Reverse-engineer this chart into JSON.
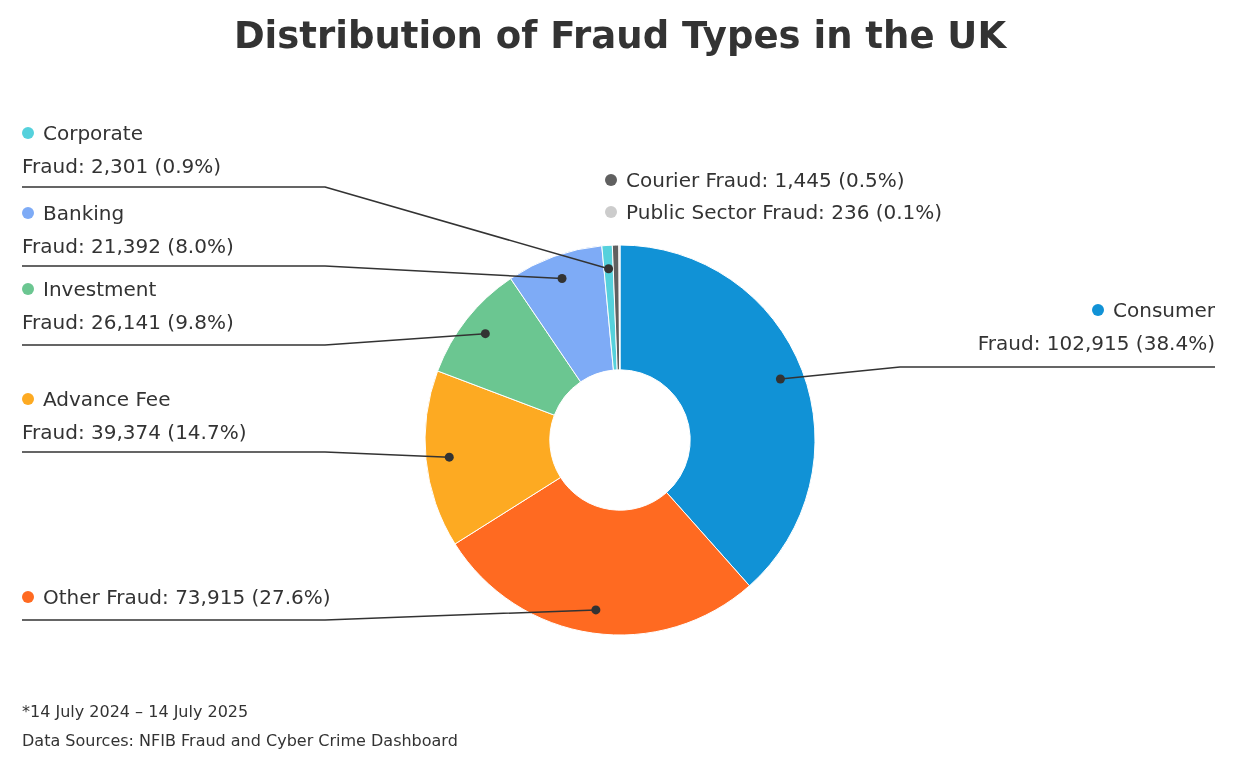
{
  "chart_data": {
    "type": "donut",
    "title": "Distribution of Fraud Types in the UK",
    "categories": [
      "Consumer Fraud",
      "Other Fraud",
      "Advance Fee Fraud",
      "Investment Fraud",
      "Banking Fraud",
      "Corporate Fraud",
      "Courier Fraud",
      "Public Sector Fraud"
    ],
    "values": [
      102915,
      73915,
      39374,
      26141,
      21392,
      2301,
      1445,
      236
    ],
    "value_labels": [
      "102,915 (38.4%)",
      "73,915 (27.6%)",
      "39,374 (14.7%)",
      "26,141 (9.8%)",
      "21,392 (8.0%)",
      "2,301 (0.9%)",
      "1,445 (0.5%)",
      "236 (0.1%)"
    ],
    "colors": [
      "#1192d6",
      "#ff6a21",
      "#fdaa22",
      "#6bc691",
      "#7eabf6",
      "#55d1dc",
      "#606060",
      "#cccccc"
    ],
    "legend": "left",
    "annotations": [
      "*14 July 2024 – 14 July 2025",
      "Data Sources: NFIB Fraud and Cyber Crime Dashboard"
    ]
  }
}
